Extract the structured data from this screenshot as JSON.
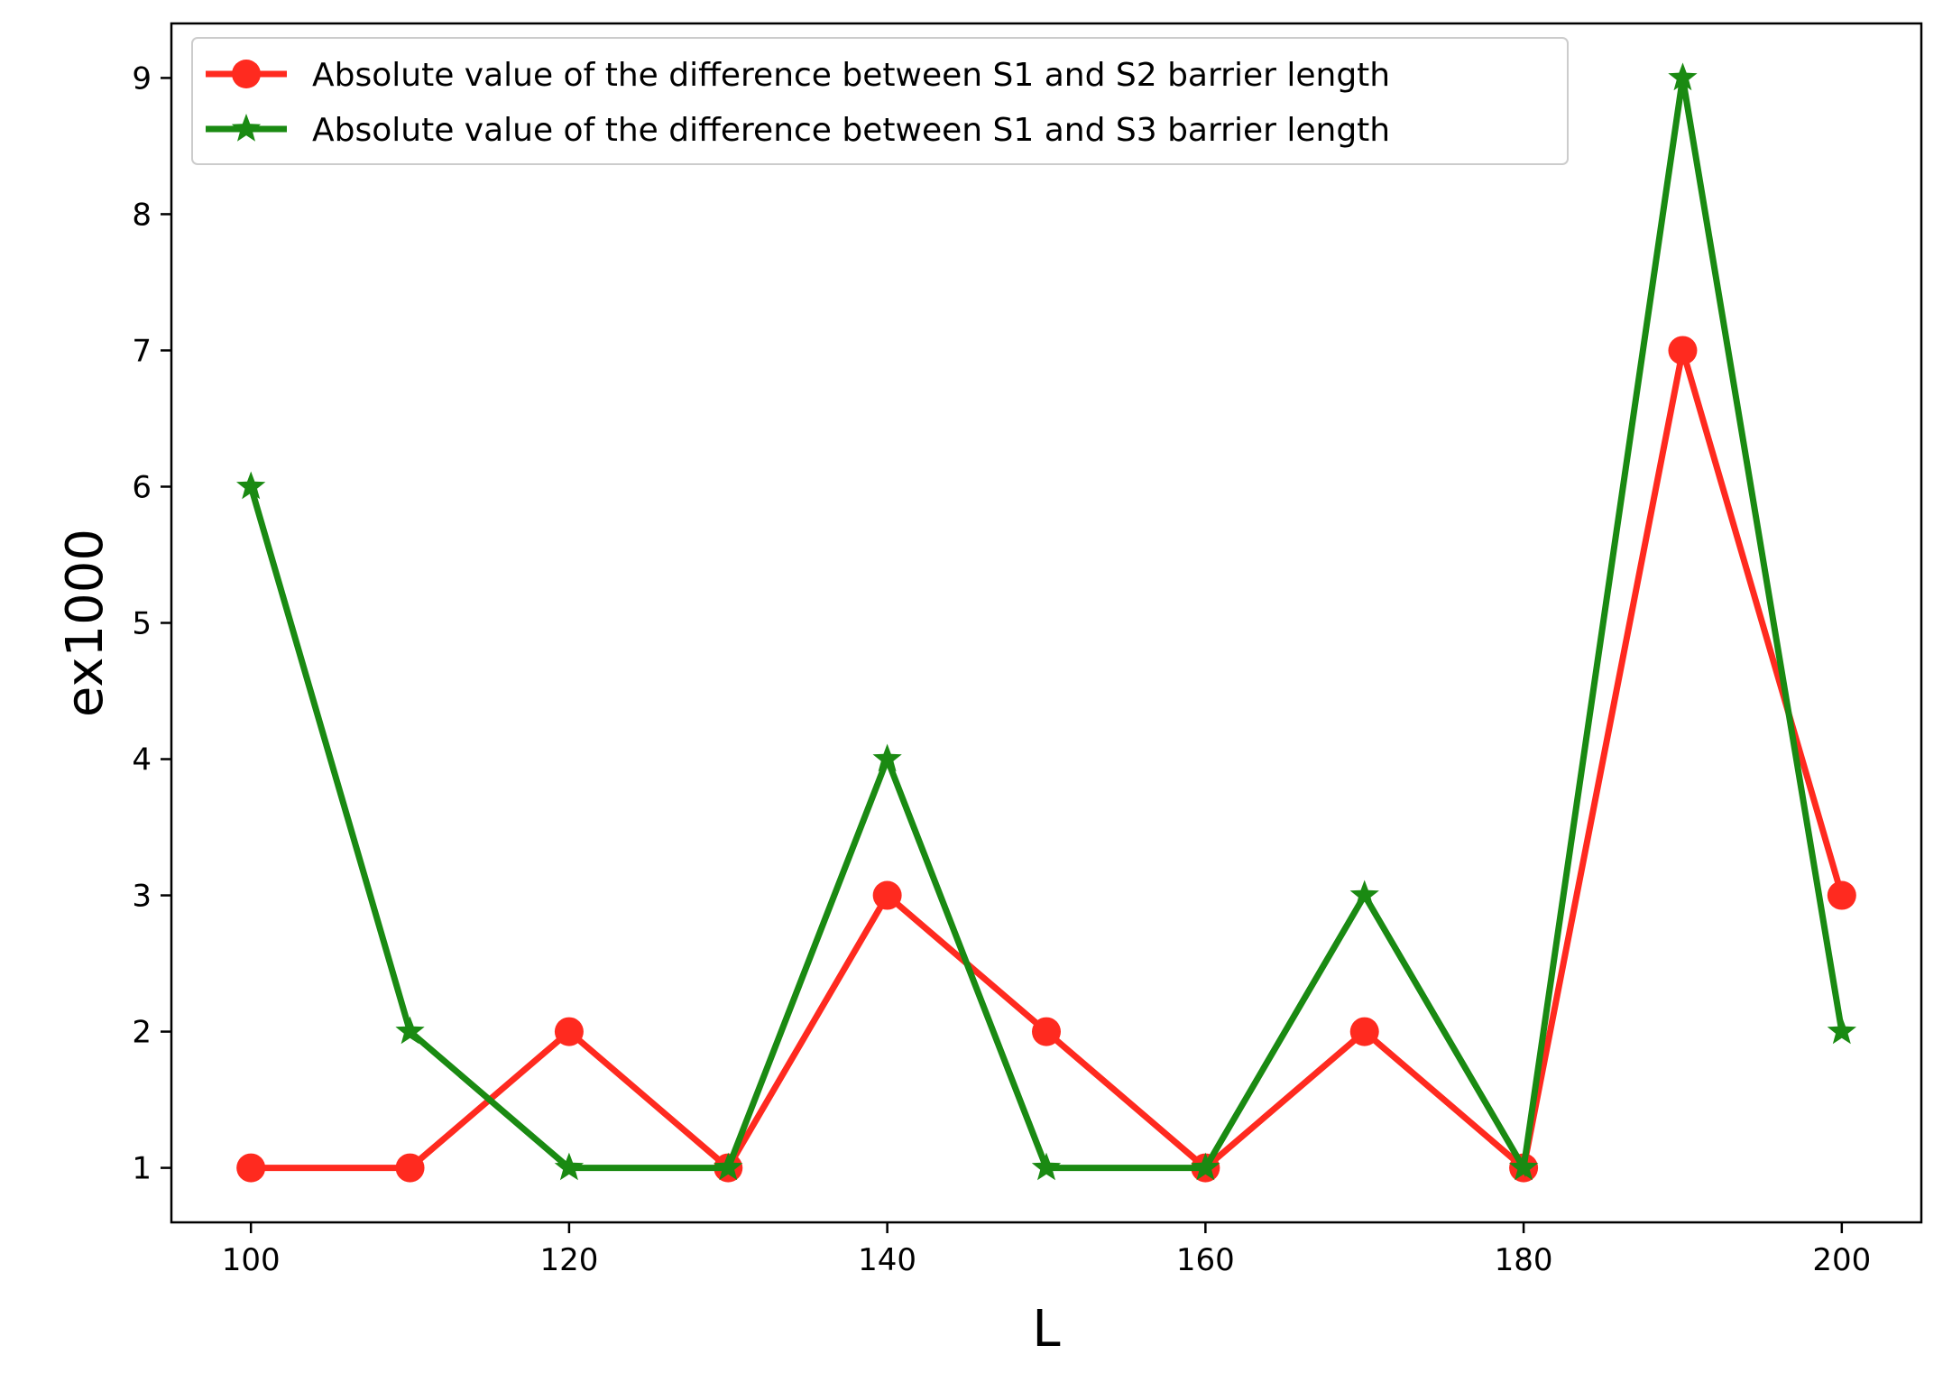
{
  "chart_data": {
    "type": "line",
    "xlabel": "L",
    "ylabel": "ex1000",
    "x": [
      100,
      110,
      120,
      130,
      140,
      150,
      160,
      170,
      180,
      190,
      200
    ],
    "xlim": [
      95,
      205
    ],
    "ylim": [
      0.6,
      9.4
    ],
    "xticks": [
      100,
      120,
      140,
      160,
      180,
      200
    ],
    "yticks": [
      1,
      2,
      3,
      4,
      5,
      6,
      7,
      8,
      9
    ],
    "grid": false,
    "legend_position": "top-left",
    "series": [
      {
        "name": "Absolute value of the difference between S1 and S2 barrier length",
        "values": [
          1,
          1,
          2,
          1,
          3,
          2,
          1,
          2,
          1,
          7,
          3
        ],
        "color": "#ff2a1f",
        "marker": "circle"
      },
      {
        "name": "Absolute value of the difference between S1 and S3 barrier length",
        "values": [
          6,
          2,
          1,
          1,
          4,
          1,
          1,
          3,
          1,
          9,
          2
        ],
        "color": "#1a8a12",
        "marker": "star"
      }
    ]
  }
}
